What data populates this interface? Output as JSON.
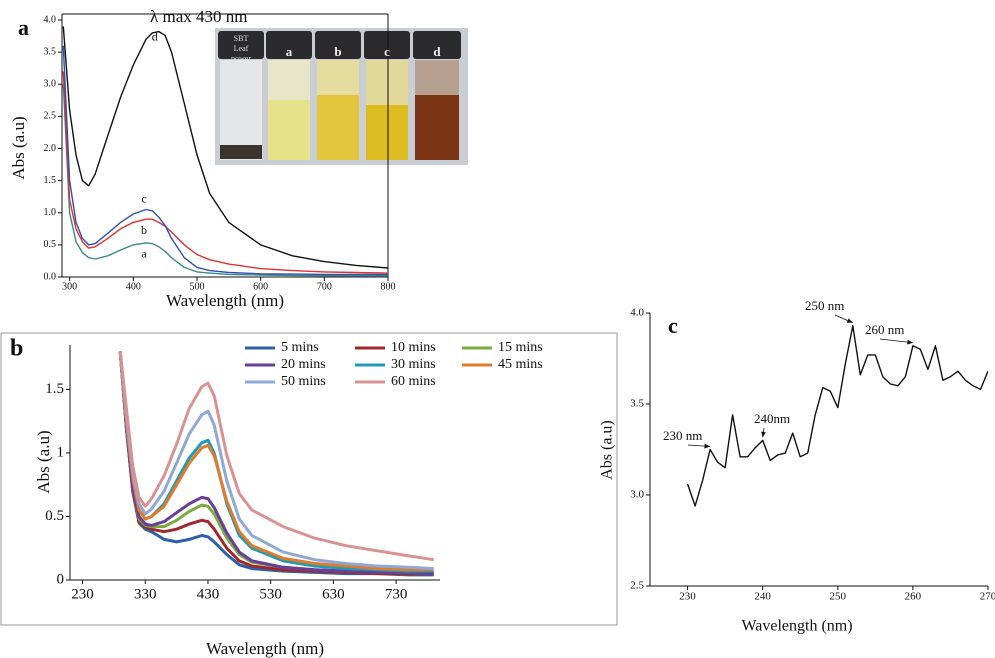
{
  "chart_data": [
    {
      "type": "line",
      "panel_label": "a",
      "title": "λ max 430 nm",
      "x_label": "Wavelength (nm)",
      "y_label": "Abs (a.u)",
      "x": [
        290,
        300,
        310,
        320,
        330,
        340,
        360,
        380,
        400,
        420,
        430,
        440,
        450,
        460,
        480,
        500,
        520,
        550,
        600,
        650,
        700,
        750,
        800
      ],
      "series": [
        {
          "name": "a",
          "color": "#3a8a86",
          "values": [
            3.0,
            1.0,
            0.55,
            0.38,
            0.3,
            0.28,
            0.33,
            0.42,
            0.5,
            0.53,
            0.52,
            0.47,
            0.4,
            0.3,
            0.15,
            0.08,
            0.06,
            0.04,
            0.03,
            0.025,
            0.02,
            0.02,
            0.02
          ]
        },
        {
          "name": "b",
          "color": "#e03030",
          "values": [
            3.2,
            1.2,
            0.75,
            0.55,
            0.45,
            0.47,
            0.6,
            0.75,
            0.85,
            0.9,
            0.9,
            0.85,
            0.79,
            0.7,
            0.5,
            0.35,
            0.27,
            0.2,
            0.13,
            0.1,
            0.08,
            0.07,
            0.06
          ]
        },
        {
          "name": "c",
          "color": "#3050b0",
          "values": [
            3.6,
            1.5,
            0.85,
            0.6,
            0.5,
            0.52,
            0.68,
            0.85,
            0.98,
            1.05,
            1.03,
            0.93,
            0.8,
            0.6,
            0.3,
            0.15,
            0.1,
            0.07,
            0.05,
            0.045,
            0.04,
            0.04,
            0.04
          ]
        },
        {
          "name": "d",
          "color": "#111111",
          "values": [
            3.9,
            2.6,
            1.9,
            1.5,
            1.42,
            1.6,
            2.2,
            2.8,
            3.3,
            3.7,
            3.8,
            3.82,
            3.76,
            3.5,
            2.7,
            1.9,
            1.3,
            0.85,
            0.5,
            0.33,
            0.24,
            0.18,
            0.14
          ]
        }
      ],
      "xlim": [
        288,
        800
      ],
      "xticks": [
        300,
        400,
        500,
        600,
        700,
        800
      ],
      "ylim": [
        0,
        4
      ],
      "yticks": [
        {
          "value": 0,
          "label": "0.0"
        },
        {
          "value": 0.5,
          "label": "0.5"
        },
        {
          "value": 1,
          "label": "1.0"
        },
        {
          "value": 1.5,
          "label": "1.5"
        },
        {
          "value": 2,
          "label": "2.0"
        },
        {
          "value": 2.5,
          "label": "2.5"
        },
        {
          "value": 3,
          "label": "3.0"
        },
        {
          "value": 3.5,
          "label": "3.5"
        },
        {
          "value": 4,
          "label": "4.0"
        }
      ],
      "inset": {
        "sample_label": [
          "SBT",
          "Leaf",
          "power"
        ],
        "vial_labels": [
          "a",
          "b",
          "c",
          "d"
        ]
      }
    },
    {
      "type": "line",
      "panel_label": "b",
      "x_label": "Wavelength (nm)",
      "y_label": "Abs (a.u)",
      "x": [
        290,
        300,
        310,
        320,
        330,
        340,
        360,
        380,
        400,
        420,
        430,
        440,
        460,
        480,
        500,
        550,
        600,
        650,
        700,
        750,
        790
      ],
      "series": [
        {
          "name": "5 mins",
          "color": "#2e5fa8",
          "values": [
            1.8,
            1.2,
            0.7,
            0.45,
            0.4,
            0.38,
            0.32,
            0.3,
            0.32,
            0.35,
            0.34,
            0.3,
            0.2,
            0.12,
            0.09,
            0.07,
            0.06,
            0.05,
            0.05,
            0.04,
            0.04
          ]
        },
        {
          "name": "10 mins",
          "color": "#a0282a",
          "values": [
            1.8,
            1.2,
            0.7,
            0.46,
            0.42,
            0.4,
            0.38,
            0.4,
            0.44,
            0.47,
            0.46,
            0.4,
            0.25,
            0.15,
            0.11,
            0.08,
            0.07,
            0.06,
            0.05,
            0.05,
            0.05
          ]
        },
        {
          "name": "15 mins",
          "color": "#7aab3c",
          "values": [
            1.8,
            1.2,
            0.72,
            0.48,
            0.43,
            0.42,
            0.42,
            0.47,
            0.54,
            0.59,
            0.58,
            0.52,
            0.33,
            0.2,
            0.14,
            0.1,
            0.08,
            0.07,
            0.06,
            0.06,
            0.05
          ]
        },
        {
          "name": "20 mins",
          "color": "#6a3d9a",
          "values": [
            1.8,
            1.2,
            0.72,
            0.5,
            0.44,
            0.43,
            0.46,
            0.53,
            0.6,
            0.65,
            0.64,
            0.57,
            0.37,
            0.22,
            0.15,
            0.1,
            0.08,
            0.07,
            0.06,
            0.06,
            0.05
          ]
        },
        {
          "name": "30 mins",
          "color": "#1f9bb8",
          "values": [
            1.8,
            1.25,
            0.8,
            0.55,
            0.48,
            0.5,
            0.6,
            0.78,
            0.96,
            1.08,
            1.1,
            1.0,
            0.6,
            0.35,
            0.25,
            0.15,
            0.11,
            0.09,
            0.08,
            0.07,
            0.07
          ]
        },
        {
          "name": "45 mins",
          "color": "#e07b2a",
          "values": [
            1.8,
            1.25,
            0.8,
            0.55,
            0.48,
            0.5,
            0.58,
            0.75,
            0.92,
            1.04,
            1.06,
            0.98,
            0.62,
            0.38,
            0.27,
            0.17,
            0.13,
            0.11,
            0.09,
            0.08,
            0.08
          ]
        },
        {
          "name": "50 mins",
          "color": "#8ea9d8",
          "values": [
            1.8,
            1.3,
            0.85,
            0.6,
            0.52,
            0.56,
            0.7,
            0.92,
            1.15,
            1.3,
            1.33,
            1.22,
            0.78,
            0.48,
            0.35,
            0.22,
            0.16,
            0.13,
            0.11,
            0.1,
            0.09
          ]
        },
        {
          "name": "60 mins",
          "color": "#d99294",
          "values": [
            1.8,
            1.35,
            0.9,
            0.65,
            0.58,
            0.64,
            0.82,
            1.07,
            1.35,
            1.52,
            1.55,
            1.45,
            0.98,
            0.68,
            0.55,
            0.42,
            0.33,
            0.27,
            0.23,
            0.19,
            0.16
          ]
        }
      ],
      "xlim": [
        210,
        800
      ],
      "xticks": [
        230,
        330,
        430,
        530,
        630,
        730
      ],
      "ylim": [
        0,
        1.85
      ],
      "yticks": [
        0,
        0.5,
        1,
        1.5
      ]
    },
    {
      "type": "line",
      "panel_label": "c",
      "x_label": "Wavelength (nm)",
      "y_label": "Abs (a.u)",
      "annotations": [
        "230 nm",
        "240nm",
        "250 nm",
        "260 nm"
      ],
      "x": [
        230,
        231,
        232,
        233,
        234,
        235,
        236,
        237,
        238,
        239,
        240,
        241,
        242,
        243,
        244,
        245,
        246,
        247,
        248,
        249,
        250,
        251,
        252,
        253,
        254,
        255,
        256,
        257,
        258,
        259,
        260,
        261,
        262,
        263,
        264,
        265,
        266,
        267,
        268,
        269,
        270
      ],
      "series": [
        {
          "color": "#111111",
          "values": [
            3.06,
            2.94,
            3.08,
            3.25,
            3.18,
            3.15,
            3.44,
            3.21,
            3.21,
            3.26,
            3.3,
            3.19,
            3.22,
            3.23,
            3.34,
            3.21,
            3.23,
            3.44,
            3.59,
            3.57,
            3.48,
            3.72,
            3.93,
            3.66,
            3.77,
            3.77,
            3.65,
            3.61,
            3.6,
            3.65,
            3.82,
            3.8,
            3.69,
            3.82,
            3.63,
            3.65,
            3.68,
            3.63,
            3.6,
            3.58,
            3.68
          ]
        }
      ],
      "xlim": [
        225,
        270
      ],
      "xticks": [
        230,
        240,
        250,
        260,
        270
      ],
      "ylim": [
        2.5,
        4
      ],
      "yticks": [
        2.5,
        {
          "value": 3,
          "label": "3.0"
        },
        3.5,
        {
          "value": 4,
          "label": "4.0"
        }
      ]
    }
  ]
}
